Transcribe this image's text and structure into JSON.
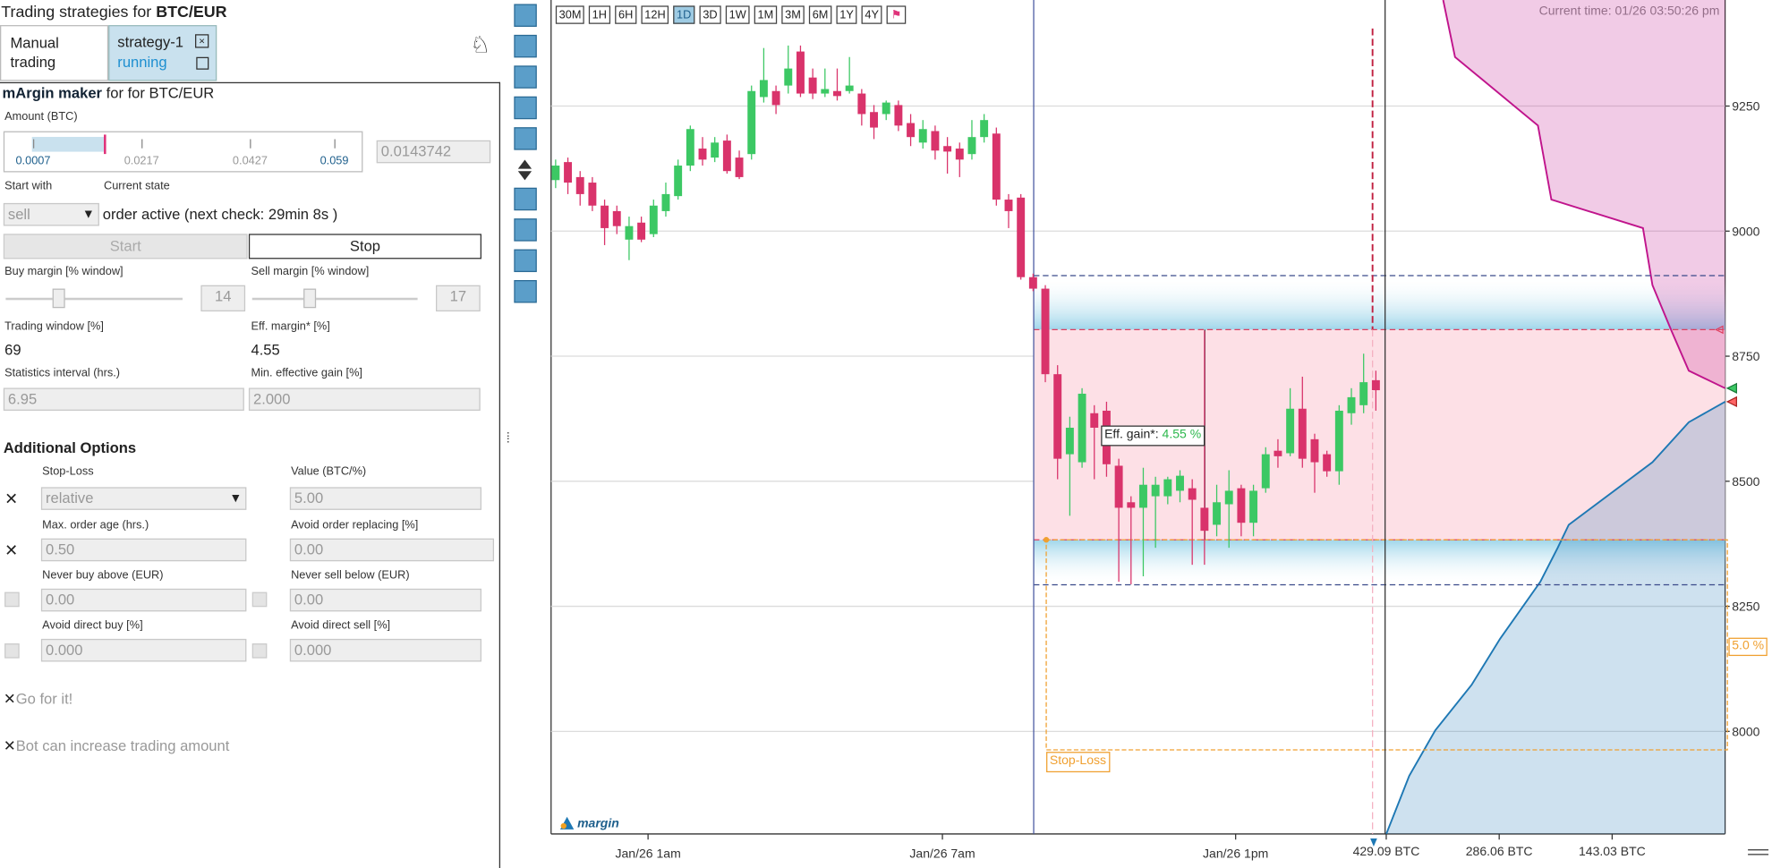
{
  "header": {
    "title_prefix": "Trading strategies for",
    "title_pair": "BTC/EUR"
  },
  "tabs": [
    {
      "label": "Manual trading"
    },
    {
      "label": "strategy-1",
      "status": "running"
    }
  ],
  "panel": {
    "title_bold": "mArgin maker",
    "title_suffix": "for for BTC/EUR",
    "amount_label": "Amount (BTC)",
    "amount_ticks": [
      0.0007,
      0.0217,
      0.0427,
      0.059
    ],
    "amount": 0.0143742,
    "start_with_label": "Start with",
    "current_state_label": "Current state",
    "start_with": "sell",
    "current_state": "order active (next check: 29min 8s )",
    "start_button": "Start",
    "stop_button": "Stop",
    "buy_margin_label": "Buy margin [% window]",
    "buy_margin": "14",
    "sell_margin_label": "Sell margin [% window]",
    "sell_margin": "17",
    "trading_window_label": "Trading window [%]",
    "trading_window": "69",
    "eff_margin_label": "Eff. margin* [%]",
    "eff_margin": "4.55",
    "stats_interval_label": "Statistics interval (hrs.)",
    "stats_interval": "6.95",
    "min_gain_label": "Min. effective gain [%]",
    "min_gain": "2.000",
    "additional_title": "Additional Options",
    "stop_loss_label": "Stop-Loss",
    "stop_loss_mode": "relative",
    "value_label": "Value (BTC/%)",
    "value": "5.00",
    "max_age_label": "Max. order age (hrs.)",
    "max_age": "0.50",
    "avoid_replacing_label": "Avoid order replacing [%]",
    "avoid_replacing": "0.00",
    "never_buy_label": "Never buy above (EUR)",
    "never_buy": "0.00",
    "never_sell_label": "Never sell below (EUR)",
    "never_sell": "0.00",
    "avoid_buy_label": "Avoid direct buy [%]",
    "avoid_buy": "0.000",
    "avoid_sell_label": "Avoid direct sell [%]",
    "avoid_sell": "0.000",
    "go_label": "Go for it!",
    "increase_label": "Bot can increase trading amount"
  },
  "chart": {
    "type": "candlestick",
    "timeframes": [
      "30M",
      "1H",
      "6H",
      "12H",
      "1D",
      "3D",
      "1W",
      "1M",
      "3M",
      "6M",
      "1Y",
      "4Y"
    ],
    "active_timeframe": "1D",
    "current_time": "Current time: 01/26 03:50:26 pm",
    "logo": "margin",
    "ylim": [
      7795,
      9462
    ],
    "yticks": [
      8000,
      8250,
      8500,
      8750,
      9000,
      9250
    ],
    "xticks": [
      "Jan/26 1am",
      "Jan/26 7am",
      "Jan/26 1pm"
    ],
    "up_color": "#3cc864",
    "down_color": "#d9336b",
    "candles": [
      [
        9102,
        9143,
        9086,
        9131
      ],
      [
        9138,
        9147,
        9074,
        9097
      ],
      [
        9108,
        9120,
        9051,
        9074
      ],
      [
        9097,
        9108,
        9040,
        9051
      ],
      [
        9051,
        9063,
        8972,
        9006
      ],
      [
        9040,
        9051,
        8994,
        9010
      ],
      [
        8983,
        9029,
        8942,
        9010
      ],
      [
        9017,
        9029,
        8978,
        8983
      ],
      [
        8994,
        9063,
        8988,
        9051
      ],
      [
        9040,
        9097,
        9029,
        9074
      ],
      [
        9070,
        9143,
        9063,
        9131
      ],
      [
        9131,
        9211,
        9120,
        9204
      ],
      [
        9165,
        9188,
        9131,
        9143
      ],
      [
        9147,
        9188,
        9138,
        9177
      ],
      [
        9181,
        9193,
        9115,
        9120
      ],
      [
        9147,
        9161,
        9104,
        9108
      ],
      [
        9154,
        9291,
        9143,
        9280
      ],
      [
        9268,
        9366,
        9257,
        9302
      ],
      [
        9280,
        9291,
        9234,
        9252
      ],
      [
        9291,
        9371,
        9275,
        9325
      ],
      [
        9359,
        9371,
        9268,
        9275
      ],
      [
        9307,
        9325,
        9264,
        9275
      ],
      [
        9275,
        9325,
        9268,
        9284
      ],
      [
        9280,
        9325,
        9261,
        9270
      ],
      [
        9280,
        9348,
        9275,
        9291
      ],
      [
        9275,
        9284,
        9211,
        9234
      ],
      [
        9238,
        9252,
        9184,
        9207
      ],
      [
        9234,
        9261,
        9222,
        9257
      ],
      [
        9252,
        9261,
        9200,
        9211
      ],
      [
        9216,
        9234,
        9170,
        9188
      ],
      [
        9177,
        9222,
        9165,
        9204
      ],
      [
        9200,
        9211,
        9143,
        9161
      ],
      [
        9170,
        9188,
        9115,
        9159
      ],
      [
        9165,
        9177,
        9108,
        9143
      ],
      [
        9154,
        9222,
        9143,
        9188
      ],
      [
        9188,
        9234,
        9177,
        9222
      ],
      [
        9195,
        9207,
        9051,
        9063
      ],
      [
        9063,
        9074,
        9006,
        9040
      ],
      [
        9067,
        9074,
        8903,
        8908
      ],
      [
        8908,
        8915,
        8880,
        8885
      ],
      [
        8885,
        8892,
        8698,
        8714
      ],
      [
        8714,
        8732,
        8504,
        8545
      ],
      [
        8554,
        8629,
        8431,
        8607
      ],
      [
        8538,
        8686,
        8527,
        8675
      ],
      [
        8636,
        8652,
        8504,
        8607
      ],
      [
        8641,
        8659,
        8509,
        8534
      ],
      [
        8531,
        8545,
        8299,
        8447
      ],
      [
        8458,
        8470,
        8294,
        8447
      ],
      [
        8447,
        8527,
        8310,
        8493
      ],
      [
        8470,
        8509,
        8367,
        8493
      ],
      [
        8470,
        8509,
        8454,
        8504
      ],
      [
        8481,
        8522,
        8458,
        8511
      ],
      [
        8486,
        8504,
        8333,
        8463
      ],
      [
        8447,
        8801,
        8333,
        8401
      ],
      [
        8413,
        8493,
        8390,
        8458
      ],
      [
        8454,
        8522,
        8367,
        8481
      ],
      [
        8486,
        8493,
        8390,
        8417
      ],
      [
        8417,
        8493,
        8390,
        8481
      ],
      [
        8486,
        8568,
        8477,
        8554
      ],
      [
        8561,
        8584,
        8527,
        8550
      ],
      [
        8556,
        8686,
        8550,
        8645
      ],
      [
        8645,
        8709,
        8527,
        8545
      ],
      [
        8584,
        8595,
        8477,
        8538
      ],
      [
        8554,
        8561,
        8509,
        8520
      ],
      [
        8520,
        8652,
        8493,
        8641
      ],
      [
        8636,
        8686,
        8613,
        8668
      ],
      [
        8652,
        8755,
        8636,
        8698
      ],
      [
        8702,
        8721,
        8641,
        8682
      ]
    ],
    "window_high": 8911,
    "window_low": 8293,
    "sell_level": 8803,
    "buy_level": 8383,
    "eff_gain_label": "Eff. gain*:",
    "eff_gain": "4.55 %",
    "stop_loss_label": "Stop-Loss",
    "stop_loss_price": 7963,
    "stop_loss_percent": "5.0 %",
    "depth_xlim": [
      429.09,
      0
    ],
    "depth_xticks": [
      {
        "value": 429.09,
        "label": "429.09 BTC"
      },
      {
        "value": 286.06,
        "label": "286.06 BTC"
      },
      {
        "value": 143.03,
        "label": "143.03 BTC"
      }
    ],
    "asks": {
      "prices": [
        8686,
        8721,
        8801,
        8892,
        9006,
        9063,
        9211,
        9348,
        9462
      ],
      "amounts": [
        0,
        46,
        68,
        92,
        104,
        220,
        237,
        342,
        357
      ],
      "color": "#c0148c"
    },
    "bids": {
      "prices": [
        8659,
        8618,
        8538,
        8413,
        8367,
        8299,
        8185,
        8093,
        8002,
        7911,
        7795
      ],
      "amounts": [
        0,
        46,
        92,
        198,
        212,
        234,
        285,
        321,
        367,
        400,
        429
      ],
      "color": "#1e78b4"
    }
  }
}
